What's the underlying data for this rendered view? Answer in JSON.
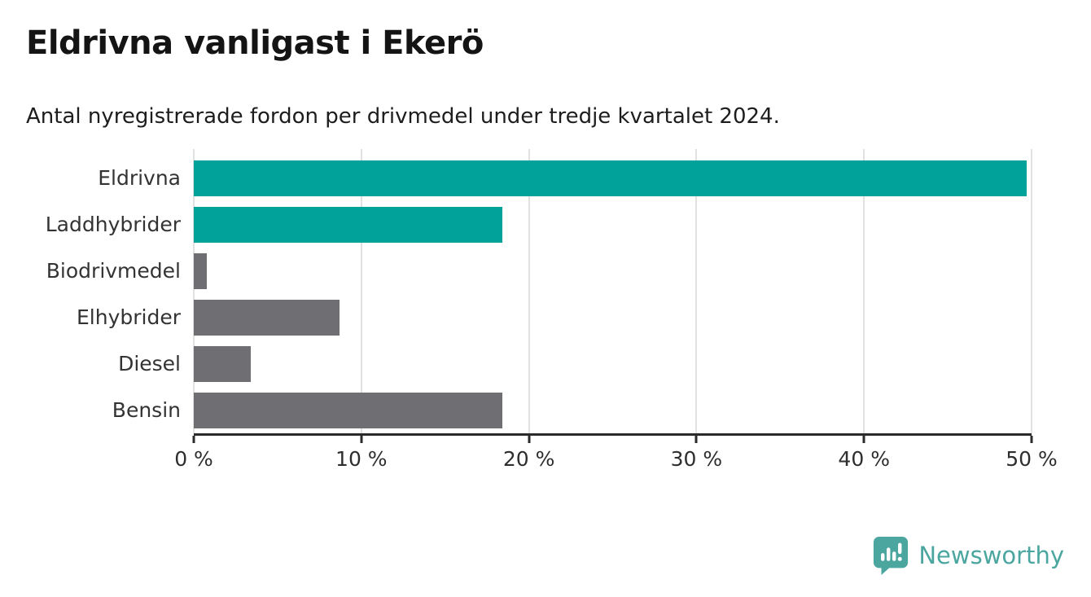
{
  "header": {
    "title": "Eldrivna vanligast i Ekerö",
    "subtitle": "Antal nyregistrerade fordon per drivmedel under tredje kvartalet 2024."
  },
  "chart_data": {
    "type": "bar",
    "orientation": "horizontal",
    "title": "Eldrivna vanligast i Ekerö",
    "subtitle": "Antal nyregistrerade fordon per drivmedel under tredje kvartalet 2024.",
    "categories": [
      "Eldrivna",
      "Laddhybrider",
      "Biodrivmedel",
      "Elhybrider",
      "Diesel",
      "Bensin"
    ],
    "values": [
      49.7,
      18.4,
      0.8,
      8.7,
      3.4,
      18.4
    ],
    "unit": "%",
    "xlabel": "",
    "ylabel": "",
    "xlim": [
      0,
      50
    ],
    "x_ticks": [
      0,
      10,
      20,
      30,
      40,
      50
    ],
    "x_tick_labels": [
      "0 %",
      "10 %",
      "20 %",
      "30 %",
      "40 %",
      "50 %"
    ],
    "grid": true,
    "legend": "none",
    "bar_colors": [
      "#00a29a",
      "#00a29a",
      "#6e6e73",
      "#6e6e73",
      "#6e6e73",
      "#6e6e73"
    ],
    "highlight_color": "#00a29a",
    "default_color": "#6e6e73"
  },
  "footer": {
    "brand": "Newsworthy",
    "brand_color": "#4ba6a0",
    "logo_icon": "bar-chart-speech-bubble-icon"
  }
}
